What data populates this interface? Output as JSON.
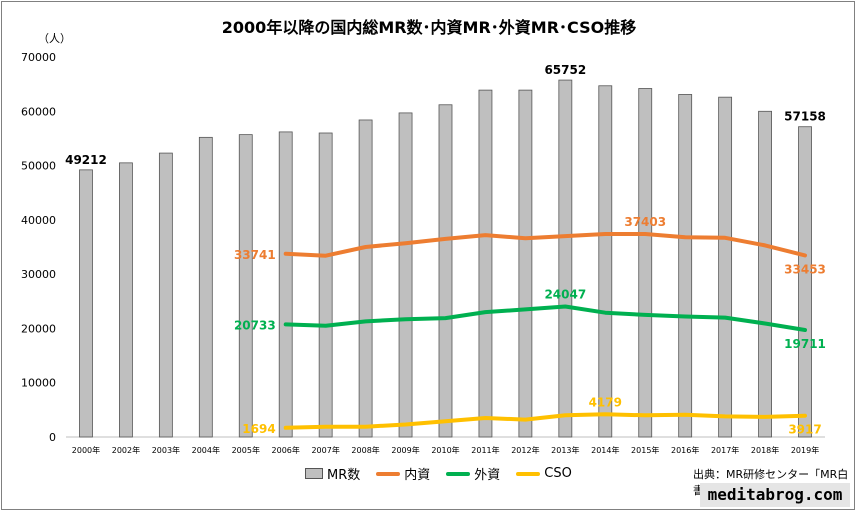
{
  "colors": {
    "bar": "#bfbfbf",
    "bar_border": "#555555",
    "naishi": "#ed7d31",
    "gaishi": "#00b050",
    "cso": "#ffc000",
    "grid": "#d9d9d9"
  },
  "chart_data": {
    "type": "bar",
    "title": "2000年以降の国内総MR数･内資MR･外資MR･CSO推移",
    "ylabel": "（人）",
    "ylim": [
      0,
      70000
    ],
    "yticks": [
      0,
      10000,
      20000,
      30000,
      40000,
      50000,
      60000,
      70000
    ],
    "grid": false,
    "categories": [
      "2000年",
      "2002年",
      "2003年",
      "2004年",
      "2005年",
      "2006年",
      "2007年",
      "2008年",
      "2009年",
      "2010年",
      "2011年",
      "2012年",
      "2013年",
      "2014年",
      "2015年",
      "2016年",
      "2017年",
      "2018年",
      "2019年"
    ],
    "series": [
      {
        "name": "MR数",
        "type": "bar",
        "values": [
          49212,
          50500,
          52300,
          55200,
          55700,
          56200,
          56000,
          58400,
          59700,
          61200,
          63900,
          63900,
          65752,
          64700,
          64200,
          63100,
          62600,
          60000,
          57158
        ],
        "labels": {
          "0": "49212",
          "12": "65752",
          "18": "57158"
        }
      },
      {
        "name": "内資",
        "type": "line",
        "values": [
          null,
          null,
          null,
          null,
          null,
          33741,
          33400,
          35000,
          35700,
          36500,
          37200,
          36600,
          37000,
          37400,
          37403,
          36800,
          36700,
          35300,
          33453
        ],
        "labels": {
          "5": "33741",
          "14": "37403",
          "18": "33453"
        }
      },
      {
        "name": "外資",
        "type": "line",
        "values": [
          null,
          null,
          null,
          null,
          null,
          20733,
          20500,
          21300,
          21700,
          21900,
          23000,
          23500,
          24047,
          22900,
          22500,
          22200,
          22000,
          20900,
          19711
        ],
        "labels": {
          "5": "20733",
          "12": "24047",
          "18": "19711"
        }
      },
      {
        "name": "CSO",
        "type": "line",
        "values": [
          null,
          null,
          null,
          null,
          null,
          1694,
          1900,
          1900,
          2300,
          2900,
          3500,
          3200,
          4000,
          4179,
          4000,
          4100,
          3800,
          3700,
          3917
        ],
        "labels": {
          "5": "1694",
          "13": "4179",
          "18": "3917"
        }
      }
    ],
    "legend": "bottom"
  },
  "source_text": "出典：MR研修センター「MR白書」",
  "brand_text": "meditabrog.com"
}
